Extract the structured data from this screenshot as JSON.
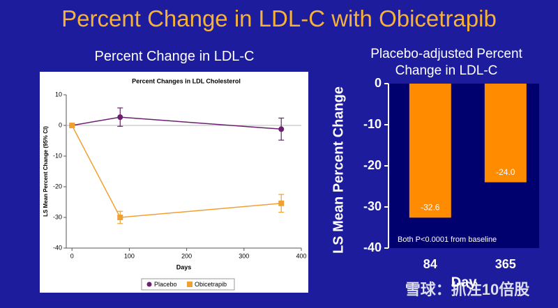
{
  "slide_title": "Percent Change in LDL-C with Obicetrapib",
  "watermark": "雪球：抓注10倍股",
  "chart_data": [
    {
      "type": "line",
      "subtitle": "Percent Change in LDL-C",
      "title": "Percent Changes in LDL Cholesterol",
      "ylabel": "LS Mean Percent Change (95% CI)",
      "xlabel": "Days",
      "x": [
        0,
        84,
        365
      ],
      "series": [
        {
          "name": "Placebo",
          "color": "#6b1f6f",
          "marker": "circle",
          "values": [
            0,
            2.7,
            -1.2
          ],
          "errors": [
            null,
            3.0,
            3.6
          ]
        },
        {
          "name": "Obicetrapib",
          "color": "#f0a030",
          "marker": "square",
          "values": [
            0,
            -30,
            -25.4
          ],
          "errors": [
            null,
            2,
            2.9
          ]
        }
      ],
      "xlim": [
        -10,
        400
      ],
      "xticks": [
        0,
        100,
        200,
        300,
        400
      ],
      "ylim": [
        -40,
        10
      ],
      "yticks": [
        -40,
        -30,
        -20,
        -10,
        0,
        10
      ],
      "zero_line": true,
      "legend": "bottom"
    },
    {
      "type": "bar",
      "title": "Placebo-adjusted Percent Change in LDL-C",
      "ylabel": "LS Mean Percent Change",
      "xlabel": "Day",
      "categories": [
        "84",
        "365"
      ],
      "values": [
        -32.6,
        -24.0
      ],
      "value_labels": [
        "-32.6",
        "-24.0"
      ],
      "color": "#ff8c00",
      "plot_color": "#00006e",
      "ylim": [
        -40,
        0
      ],
      "yticks": [
        0,
        -10,
        -20,
        -30,
        -40
      ],
      "annotation": "Both P<0.0001 from baseline"
    }
  ]
}
